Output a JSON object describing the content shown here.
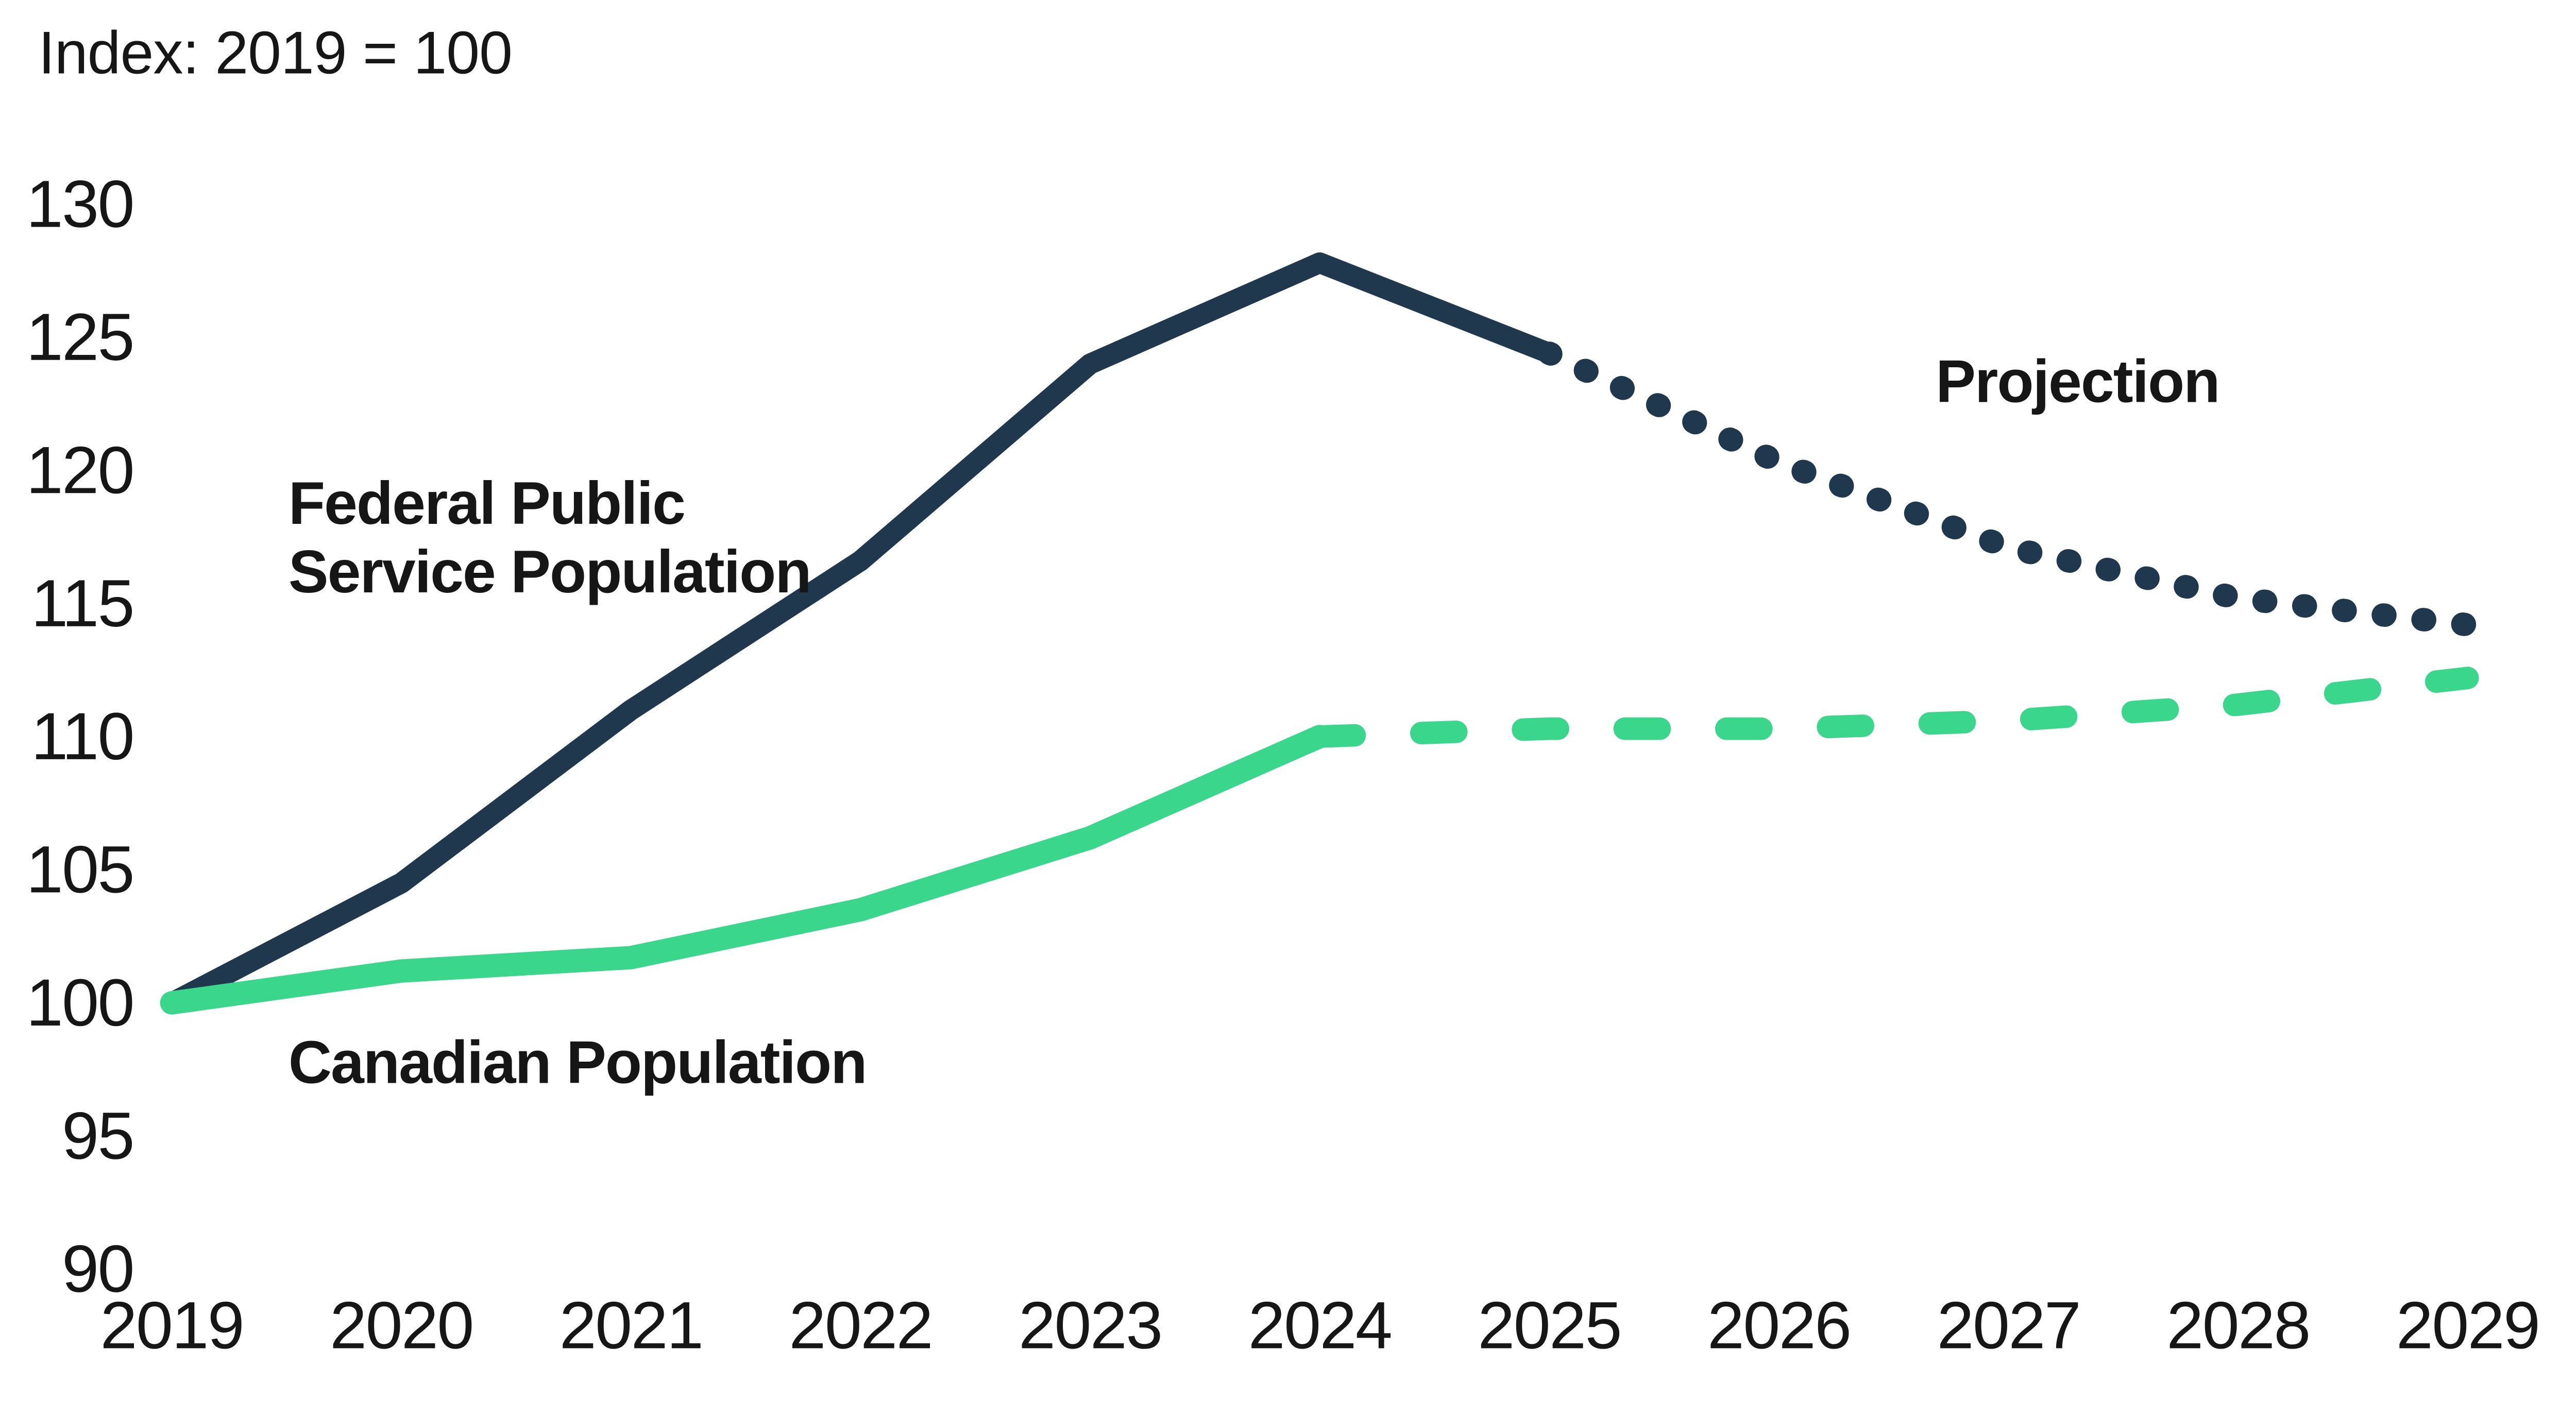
{
  "title": "Index: 2019 = 100",
  "labels": {
    "federal_line1": "Federal Public",
    "federal_line2": "Service Population",
    "canadian": "Canadian Population",
    "projection": "Projection"
  },
  "colors": {
    "federal": "#20384d",
    "canadian": "#3ad68b",
    "text": "#161616",
    "background": "#ffffff"
  },
  "chart_data": {
    "type": "line",
    "title": "Index: 2019 = 100",
    "xlabel": "",
    "ylabel": "",
    "ylim": [
      90,
      130
    ],
    "grid": false,
    "legend_position": "none",
    "y_ticks": [
      130,
      125,
      120,
      115,
      110,
      105,
      100,
      95,
      90
    ],
    "x_ticks": [
      2019,
      2020,
      2021,
      2022,
      2023,
      2024,
      2025,
      2026,
      2027,
      2028,
      2029
    ],
    "series": [
      {
        "name": "Federal Public Service Population",
        "segment": "actual",
        "style": "solid",
        "color": "#20384d",
        "x": [
          2019,
          2020,
          2021,
          2022,
          2023,
          2024,
          2025
        ],
        "values": [
          100,
          104.5,
          111.0,
          116.6,
          124.0,
          127.8,
          124.4
        ]
      },
      {
        "name": "Federal Public Service Population",
        "segment": "projection",
        "style": "dotted",
        "color": "#20384d",
        "x": [
          2025,
          2026,
          2027,
          2028,
          2029
        ],
        "values": [
          124.4,
          120.3,
          117.1,
          115.2,
          114.2
        ]
      },
      {
        "name": "Canadian Population",
        "segment": "actual",
        "style": "solid",
        "color": "#3ad68b",
        "x": [
          2019,
          2020,
          2021,
          2022,
          2023,
          2024
        ],
        "values": [
          100,
          101.2,
          101.7,
          103.5,
          106.2,
          110.0
        ]
      },
      {
        "name": "Canadian Population",
        "segment": "projection",
        "style": "dashed",
        "color": "#3ad68b",
        "x": [
          2024,
          2025,
          2026,
          2027,
          2028,
          2029
        ],
        "values": [
          110.0,
          110.3,
          110.3,
          110.6,
          111.2,
          112.2
        ]
      }
    ],
    "annotations": [
      {
        "text": "Federal Public Service Population",
        "series": "Federal Public Service Population"
      },
      {
        "text": "Canadian Population",
        "series": "Canadian Population"
      },
      {
        "text": "Projection",
        "series": "projection segments"
      }
    ]
  }
}
